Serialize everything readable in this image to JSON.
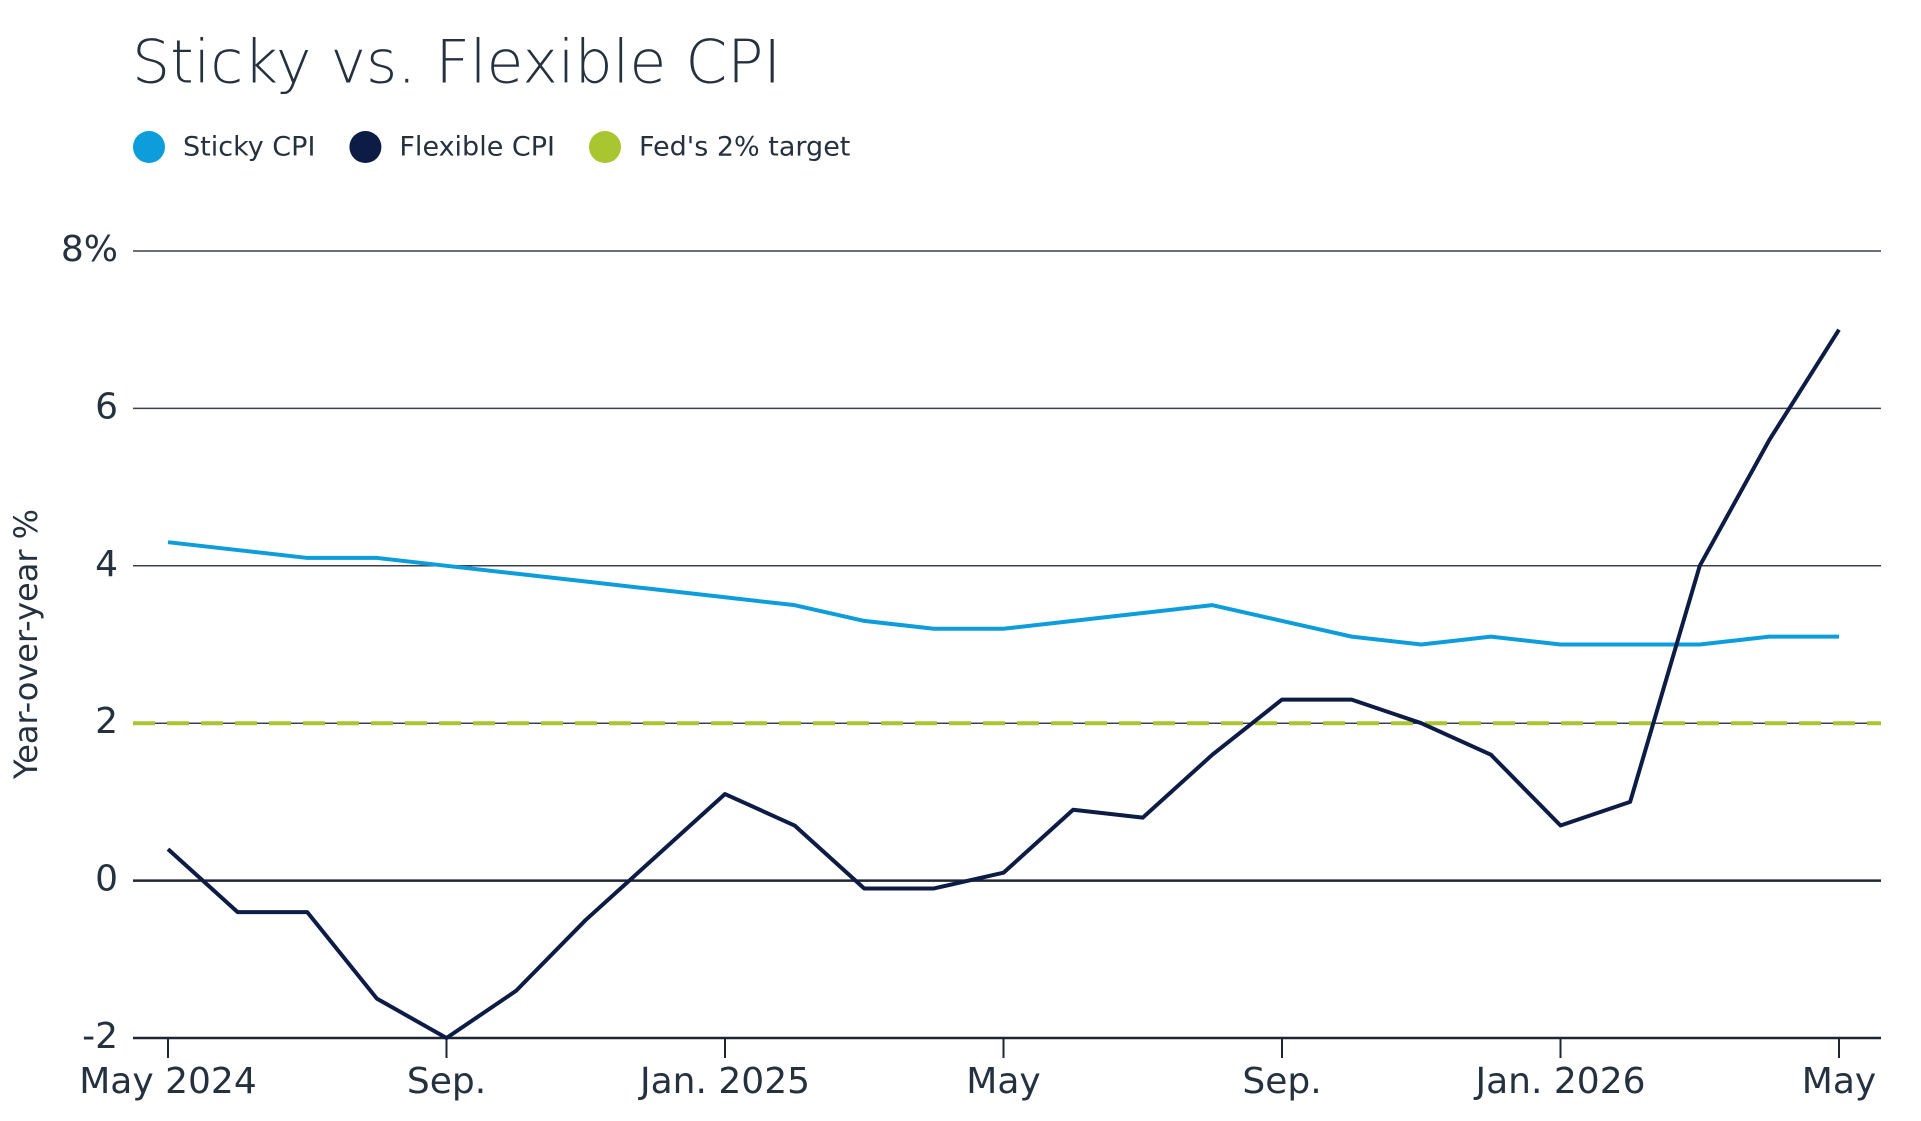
{
  "chart_data": {
    "type": "line",
    "title": "Sticky vs. Flexible CPI",
    "y_label": "Year-over-year %",
    "categories": [
      "May 2024",
      null,
      null,
      null,
      "Sep.",
      null,
      null,
      null,
      "Jan. 2025",
      null,
      null,
      null,
      "May",
      null,
      null,
      null,
      "Sep.",
      null,
      null,
      null,
      "Jan. 2026",
      null,
      null,
      null,
      "May"
    ],
    "series": [
      {
        "name": "Sticky CPI",
        "color": "#0d9ddb",
        "values": [
          4.3,
          4.2,
          4.1,
          4.1,
          4.0,
          3.9,
          3.8,
          3.7,
          3.6,
          3.5,
          3.3,
          3.2,
          3.2,
          3.3,
          3.4,
          3.5,
          3.3,
          3.1,
          3.0,
          3.1,
          3.0,
          3.0,
          3.0,
          3.1,
          3.1
        ]
      },
      {
        "name": "Flexible CPI",
        "color": "#0c1c44",
        "values": [
          0.4,
          -0.4,
          -0.4,
          -1.5,
          -2.0,
          -1.4,
          -0.5,
          0.3,
          1.1,
          0.7,
          -0.1,
          -0.1,
          0.1,
          0.9,
          0.8,
          1.6,
          2.3,
          2.3,
          2.0,
          1.6,
          0.7,
          1.0,
          4.0,
          5.6,
          7.0
        ]
      }
    ],
    "reference_line": {
      "name": "Fed's 2% target",
      "color": "#a9c52f",
      "value": 2,
      "dashed": true
    },
    "ylim": [
      -2,
      8
    ],
    "yticks": [
      -2,
      0,
      2,
      4,
      6,
      {
        "value": 8,
        "label": "8%"
      }
    ],
    "grid": true
  }
}
